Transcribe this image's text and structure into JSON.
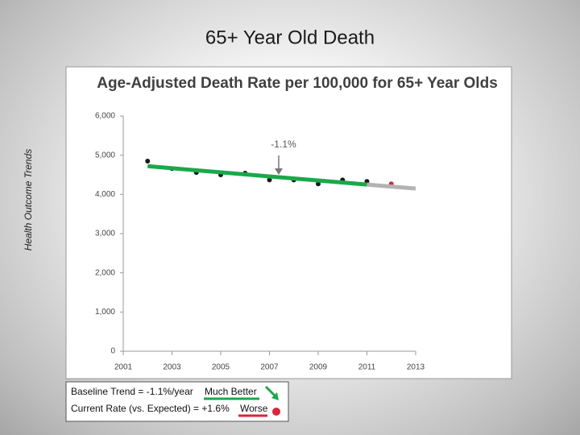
{
  "slide": {
    "title": "65+ Year Old Death",
    "side_label": "Health Outcome Trends"
  },
  "chart_data": {
    "type": "line",
    "title": "Age-Adjusted Death Rate per 100,000 for 65+ Year Olds",
    "annotation": "-1.1%",
    "series": [
      {
        "color": "#1a1a1a",
        "mode": "markers",
        "x": [
          2002,
          2003,
          2004,
          2005,
          2006,
          2007,
          2008,
          2009,
          2010,
          2011
        ],
        "values": [
          4850,
          4660,
          4560,
          4500,
          4540,
          4370,
          4370,
          4270,
          4370,
          4330
        ]
      },
      {
        "color": "#d9263a",
        "mode": "markers",
        "x": [
          2012
        ],
        "values": [
          4270
        ]
      },
      {
        "color": "#1aa84a",
        "mode": "lines",
        "x": [
          2002,
          2011
        ],
        "values": [
          4720,
          4250
        ]
      },
      {
        "color": "#b3b3b3",
        "mode": "lines",
        "x": [
          2011,
          2013
        ],
        "values": [
          4250,
          4150
        ]
      }
    ],
    "xlim": [
      2001,
      2013
    ],
    "xticks": [
      2001,
      2003,
      2005,
      2007,
      2009,
      2011,
      2013
    ],
    "ylim": [
      0,
      6000
    ],
    "yticks": [
      0,
      {
        "value": 1000,
        "label": "1,000"
      },
      {
        "value": 2000,
        "label": "2,000"
      },
      {
        "value": 3000,
        "label": "3,000"
      },
      {
        "value": 4000,
        "label": "4,000"
      },
      {
        "value": 5000,
        "label": "5,000"
      },
      {
        "value": 6000,
        "label": "6,000"
      }
    ]
  },
  "legend_box": {
    "baseline": "Baseline Trend = -1.1%/year",
    "baseline_rating": "Much Better",
    "current": "Current Rate (vs. Expected) = +1.6%",
    "current_rating": "Worse"
  }
}
